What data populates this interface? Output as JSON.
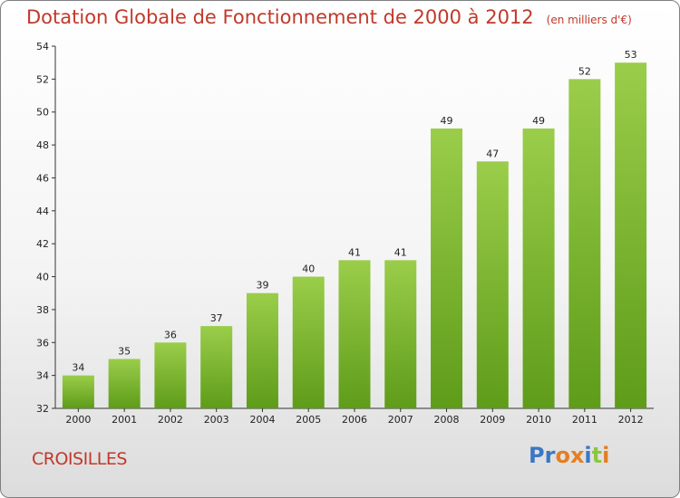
{
  "chart_data": {
    "type": "bar",
    "title": "Dotation Globale de Fonctionnement de 2000 à 2012",
    "subtitle": "(en milliers d'€)",
    "categories": [
      "2000",
      "2001",
      "2002",
      "2003",
      "2004",
      "2005",
      "2006",
      "2007",
      "2008",
      "2009",
      "2010",
      "2011",
      "2012"
    ],
    "values": [
      34,
      35,
      36,
      37,
      39,
      40,
      41,
      41,
      49,
      47,
      49,
      52,
      53
    ],
    "yticks": [
      32,
      34,
      36,
      38,
      40,
      42,
      44,
      46,
      48,
      50,
      52,
      54
    ],
    "ylim": [
      32,
      54
    ],
    "grid": false,
    "bar_color_top": "#9acd4a",
    "bar_color_bottom": "#5e9c19"
  },
  "footer": {
    "commune": "CROISILLES",
    "logo_letters": [
      {
        "ch": "P",
        "color": "#3a78c3"
      },
      {
        "ch": "r",
        "color": "#3a78c3"
      },
      {
        "ch": "o",
        "color": "#e67e22"
      },
      {
        "ch": "x",
        "color": "#e67e22"
      },
      {
        "ch": "i",
        "color": "#3a78c3"
      },
      {
        "ch": "t",
        "color": "#8dc63f"
      },
      {
        "ch": "i",
        "color": "#e67e22"
      }
    ]
  },
  "colors": {
    "title": "#c0392b",
    "axis": "#333333"
  }
}
